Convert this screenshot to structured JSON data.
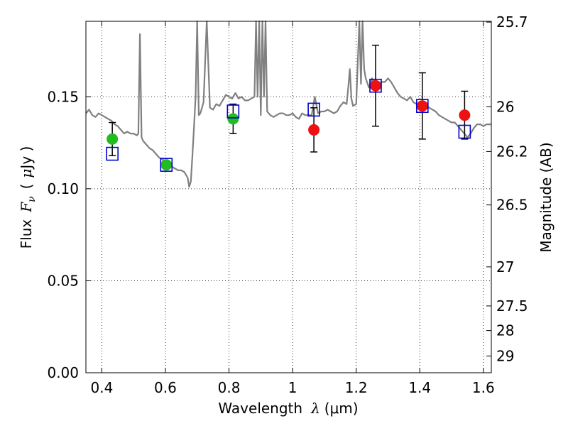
{
  "chart_data": {
    "type": "scatter",
    "xlabel_prefix": "Wavelength",
    "xlabel_symbol": "λ",
    "xlabel_unit": "(μm)",
    "ylabel_prefix": "Flux",
    "ylabel_symbol": "F",
    "ylabel_subscript": "ν",
    "ylabel_unit_open": "(",
    "ylabel_unit_mu": "μ",
    "ylabel_unit_rest": "Jy )",
    "y2label": "Magnitude (AB)",
    "xlim": [
      0.35,
      1.625
    ],
    "ylim": [
      0.0,
      0.191
    ],
    "grid": true,
    "grid_style": "dotted",
    "xticks": [
      {
        "value": 0.4,
        "label": "0.4"
      },
      {
        "value": 0.6,
        "label": "0.6"
      },
      {
        "value": 0.8,
        "label": "0.8"
      },
      {
        "value": 1.0,
        "label": "1"
      },
      {
        "value": 1.2,
        "label": "1.2"
      },
      {
        "value": 1.4,
        "label": "1.4"
      },
      {
        "value": 1.6,
        "label": "1.6"
      }
    ],
    "yticks": [
      {
        "value": 0.0,
        "label": "0.00"
      },
      {
        "value": 0.05,
        "label": "0.05"
      },
      {
        "value": 0.1,
        "label": "0.10"
      },
      {
        "value": 0.15,
        "label": "0.15"
      }
    ],
    "y2ticks": [
      {
        "value": 25.7,
        "label": "25.7"
      },
      {
        "value": 26.0,
        "label": "26"
      },
      {
        "value": 26.2,
        "label": "26.2"
      },
      {
        "value": 26.5,
        "label": "26.5"
      },
      {
        "value": 27.0,
        "label": "27"
      },
      {
        "value": 27.5,
        "label": "27.5"
      },
      {
        "value": 28.0,
        "label": "28"
      },
      {
        "value": 29.0,
        "label": "29"
      }
    ],
    "colors": {
      "spectrum": "#808080",
      "green_points": "#22bb22",
      "red_points": "#ee1111",
      "model_boxes": "#0000cc",
      "error_bars": "#000000"
    },
    "series": [
      {
        "kind": "spectrum",
        "x": [
          0.35,
          0.36,
          0.37,
          0.38,
          0.39,
          0.4,
          0.41,
          0.42,
          0.43,
          0.44,
          0.45,
          0.46,
          0.47,
          0.48,
          0.49,
          0.5,
          0.51,
          0.515,
          0.52,
          0.525,
          0.53,
          0.54,
          0.55,
          0.56,
          0.57,
          0.58,
          0.59,
          0.6,
          0.61,
          0.62,
          0.63,
          0.64,
          0.65,
          0.66,
          0.67,
          0.675,
          0.68,
          0.685,
          0.69,
          0.695,
          0.7,
          0.705,
          0.71,
          0.72,
          0.73,
          0.74,
          0.75,
          0.76,
          0.77,
          0.78,
          0.79,
          0.8,
          0.81,
          0.82,
          0.83,
          0.84,
          0.85,
          0.86,
          0.87,
          0.88,
          0.885,
          0.89,
          0.895,
          0.9,
          0.905,
          0.91,
          0.915,
          0.92,
          0.93,
          0.94,
          0.95,
          0.96,
          0.97,
          0.98,
          0.99,
          1.0,
          1.01,
          1.02,
          1.03,
          1.04,
          1.05,
          1.06,
          1.07,
          1.08,
          1.09,
          1.1,
          1.11,
          1.12,
          1.13,
          1.14,
          1.15,
          1.16,
          1.17,
          1.175,
          1.18,
          1.185,
          1.19,
          1.2,
          1.21,
          1.215,
          1.22,
          1.225,
          1.23,
          1.24,
          1.25,
          1.26,
          1.27,
          1.28,
          1.29,
          1.3,
          1.31,
          1.32,
          1.33,
          1.34,
          1.35,
          1.36,
          1.37,
          1.38,
          1.39,
          1.4,
          1.41,
          1.42,
          1.43,
          1.44,
          1.45,
          1.46,
          1.47,
          1.48,
          1.49,
          1.5,
          1.51,
          1.52,
          1.53,
          1.54,
          1.55,
          1.56,
          1.57,
          1.58,
          1.59,
          1.6,
          1.61,
          1.62,
          1.625
        ],
        "y": [
          0.141,
          0.143,
          0.14,
          0.139,
          0.141,
          0.14,
          0.139,
          0.138,
          0.137,
          0.135,
          0.134,
          0.132,
          0.13,
          0.131,
          0.13,
          0.13,
          0.129,
          0.13,
          0.184,
          0.128,
          0.126,
          0.124,
          0.122,
          0.121,
          0.119,
          0.117,
          0.116,
          0.115,
          0.114,
          0.112,
          0.111,
          0.11,
          0.11,
          0.109,
          0.106,
          0.101,
          0.104,
          0.118,
          0.134,
          0.15,
          0.192,
          0.14,
          0.141,
          0.147,
          0.192,
          0.144,
          0.143,
          0.146,
          0.145,
          0.148,
          0.151,
          0.15,
          0.149,
          0.152,
          0.149,
          0.15,
          0.148,
          0.148,
          0.149,
          0.15,
          0.192,
          0.15,
          0.192,
          0.14,
          0.192,
          0.15,
          0.192,
          0.142,
          0.14,
          0.139,
          0.14,
          0.141,
          0.141,
          0.14,
          0.14,
          0.141,
          0.139,
          0.138,
          0.141,
          0.14,
          0.14,
          0.14,
          0.15,
          0.141,
          0.142,
          0.142,
          0.143,
          0.142,
          0.141,
          0.142,
          0.145,
          0.147,
          0.146,
          0.155,
          0.165,
          0.149,
          0.145,
          0.146,
          0.192,
          0.157,
          0.192,
          0.165,
          0.16,
          0.155,
          0.16,
          0.155,
          0.157,
          0.158,
          0.158,
          0.16,
          0.158,
          0.155,
          0.152,
          0.15,
          0.149,
          0.148,
          0.15,
          0.147,
          0.146,
          0.145,
          0.146,
          0.145,
          0.144,
          0.143,
          0.142,
          0.14,
          0.139,
          0.138,
          0.137,
          0.136,
          0.136,
          0.134,
          0.132,
          0.13,
          0.128,
          0.13,
          0.133,
          0.135,
          0.135,
          0.134,
          0.135,
          0.135,
          0.135
        ]
      },
      {
        "kind": "model_boxes",
        "x": [
          0.433,
          0.603,
          0.813,
          1.067,
          1.261,
          1.408,
          1.541
        ],
        "y": [
          0.119,
          0.113,
          0.142,
          0.143,
          0.156,
          0.145,
          0.131
        ]
      },
      {
        "kind": "green_points",
        "x": [
          0.433,
          0.603,
          0.813
        ],
        "y": [
          0.127,
          0.113,
          0.138
        ],
        "yerr": [
          0.009,
          0.002,
          0.008
        ]
      },
      {
        "kind": "red_points",
        "x": [
          1.067,
          1.261,
          1.408,
          1.541
        ],
        "y": [
          0.132,
          0.156,
          0.145,
          0.14
        ],
        "yerr": [
          0.012,
          0.022,
          0.018,
          0.013
        ]
      }
    ]
  }
}
